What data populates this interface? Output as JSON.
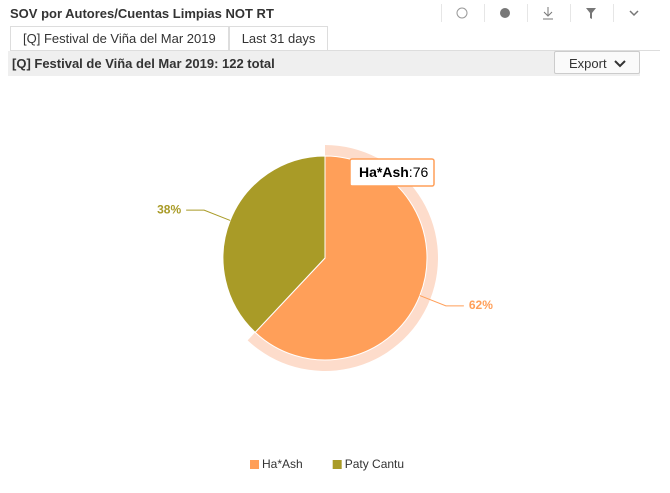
{
  "header": {
    "title": "SOV por Autores/Cuentas Limpias NOT RT",
    "tabs": [
      "[Q] Festival de Viña del Mar 2019",
      "Last 31 days"
    ],
    "subtitle": "[Q] Festival de Viña del Mar 2019: 122 total",
    "export": "Export"
  },
  "chart_data": {
    "type": "pie",
    "categories": [
      "Ha*Ash",
      "Paty Cantu"
    ],
    "values": [
      62,
      38
    ],
    "value_labels": [
      "62%",
      "38%"
    ],
    "colors": [
      "#ff9f59",
      "#a99b27"
    ],
    "highlight_color": "#fddccb",
    "tooltip": {
      "category": 0,
      "separator": ":",
      "value": 76
    },
    "legend": "bottom"
  }
}
